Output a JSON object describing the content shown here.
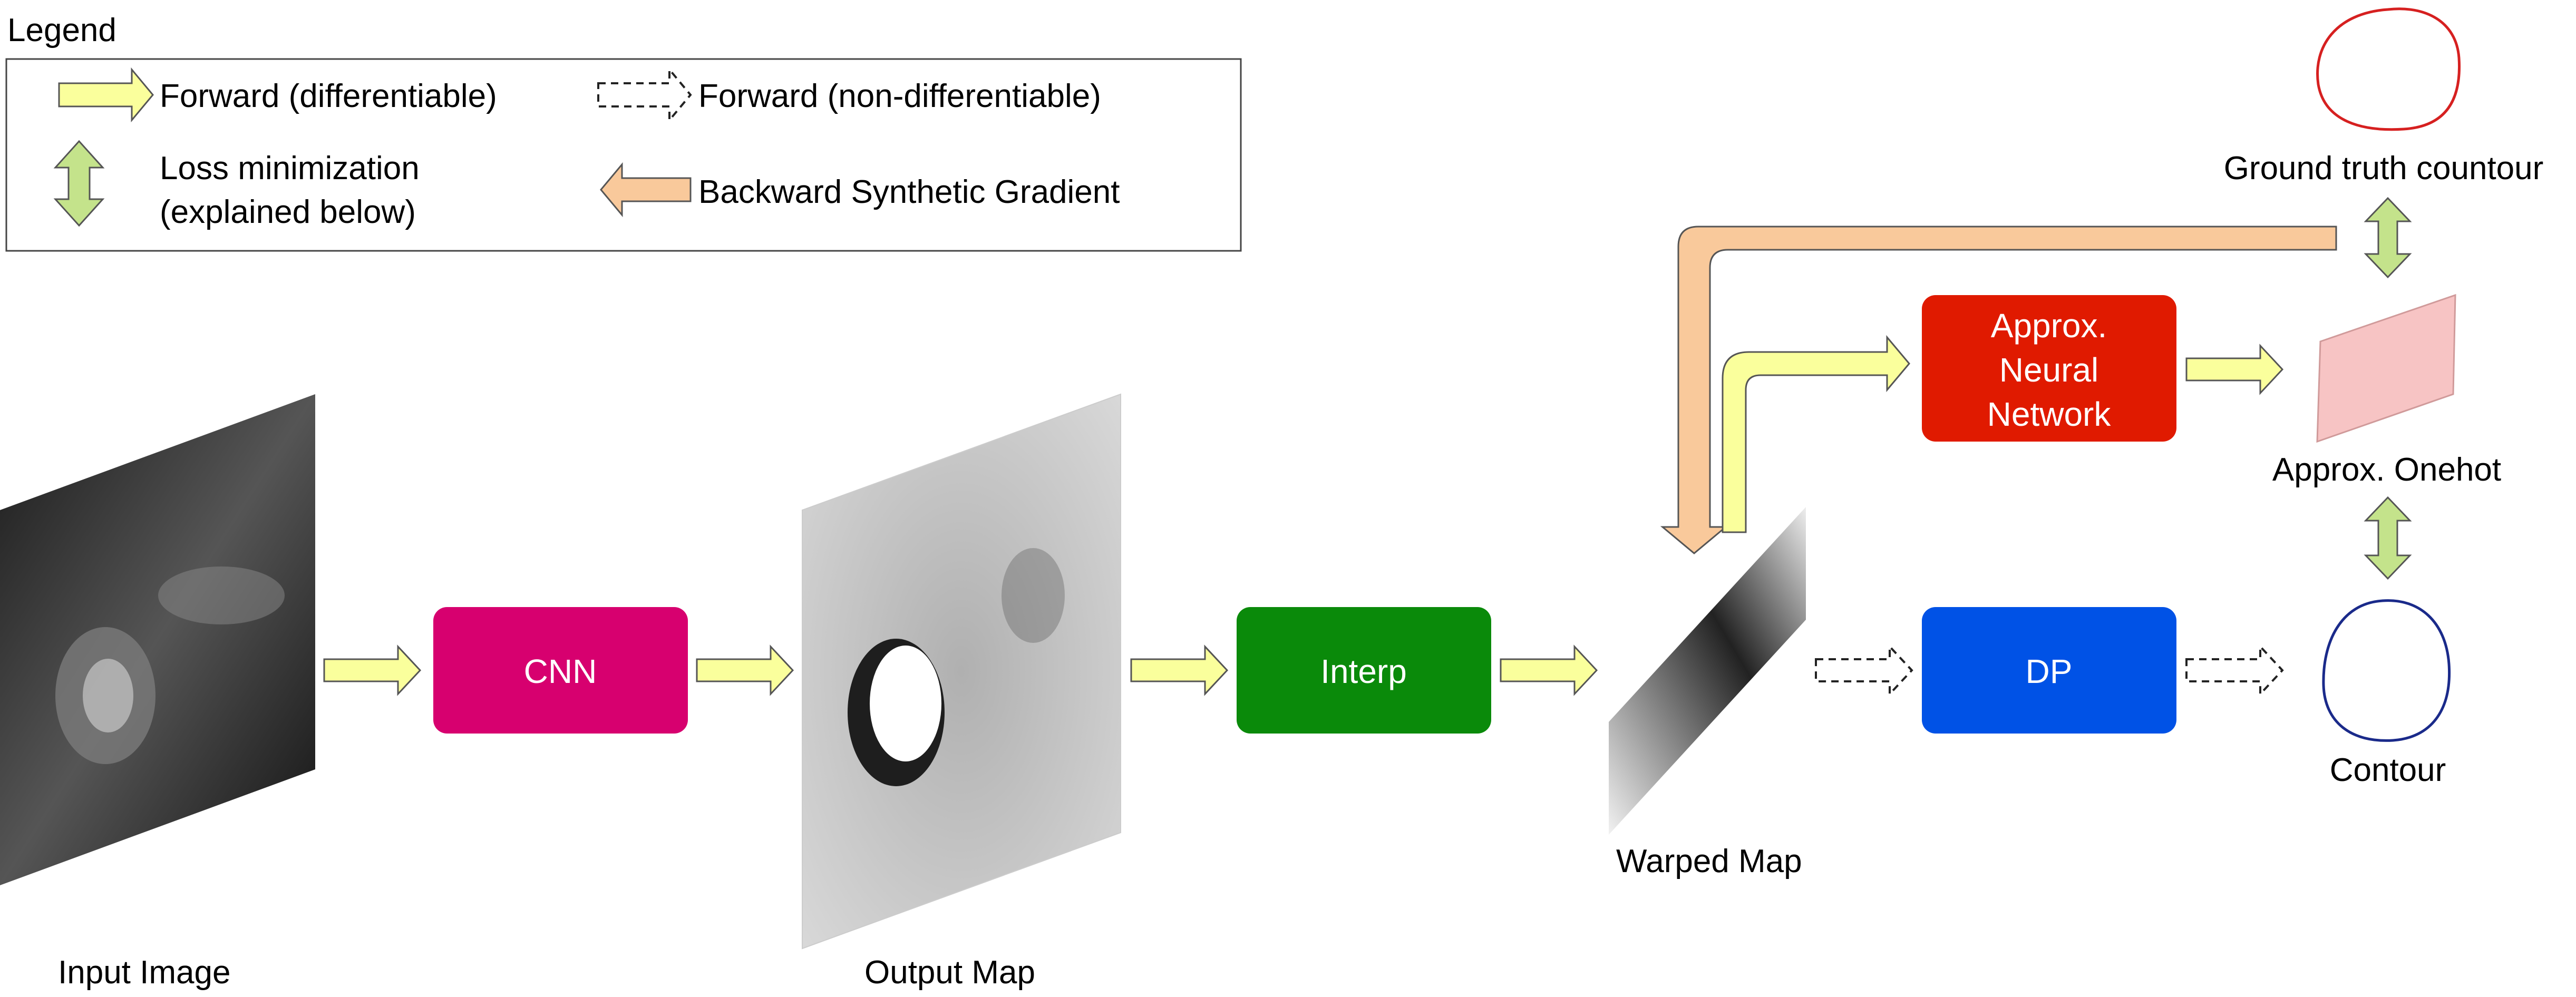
{
  "legend": {
    "title": "Legend",
    "forward_diff": "Forward (differentiable)",
    "forward_nondiff": "Forward (non-differentiable)",
    "loss_line1": "Loss minimization",
    "loss_line2": "(explained below)",
    "backward": "Backward Synthetic Gradient"
  },
  "blocks": {
    "cnn": "CNN",
    "interp": "Interp",
    "dp": "DP",
    "approx_nn": [
      "Approx.",
      "Neural",
      "Network"
    ]
  },
  "labels": {
    "input_image": "Input Image",
    "output_map": "Output Map",
    "warped_map": "Warped Map",
    "ground_truth": "Ground truth countour",
    "approx_onehot": "Approx. Onehot",
    "contour": "Contour"
  },
  "colors": {
    "forward_arrow": "#faff9c",
    "backward_arrow": "#f9c99b",
    "loss_arrow": "#c4e38b",
    "cnn": "#d7006f",
    "interp": "#0a8a0a",
    "dp": "#0052e6",
    "approx_nn": "#e01a00",
    "ground_truth_contour": "#d62020",
    "contour": "#1a2a8a",
    "onehot": "#f7c4c4"
  }
}
